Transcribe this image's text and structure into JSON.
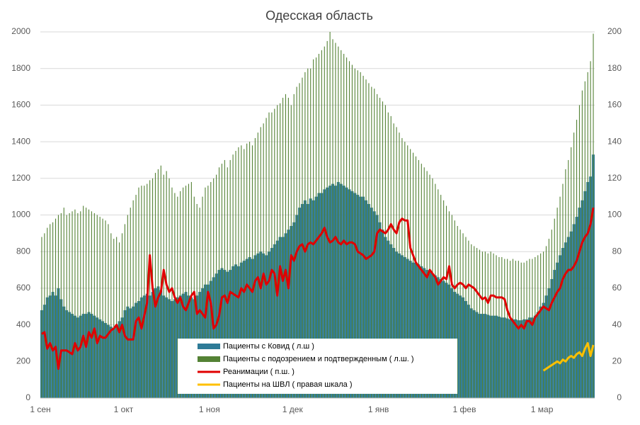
{
  "chart_data": {
    "type": "combo",
    "title": "Одесская область",
    "categories": [
      "1 сен",
      null,
      null,
      null,
      null,
      null,
      null,
      null,
      null,
      null,
      null,
      null,
      null,
      null,
      null,
      null,
      null,
      null,
      null,
      null,
      null,
      null,
      null,
      null,
      null,
      null,
      null,
      null,
      null,
      null,
      "1 окт",
      null,
      null,
      null,
      null,
      null,
      null,
      null,
      null,
      null,
      null,
      null,
      null,
      null,
      null,
      null,
      null,
      null,
      null,
      null,
      null,
      null,
      null,
      null,
      null,
      null,
      null,
      null,
      null,
      null,
      null,
      "1 ноя",
      null,
      null,
      null,
      null,
      null,
      null,
      null,
      null,
      null,
      null,
      null,
      null,
      null,
      null,
      null,
      null,
      null,
      null,
      null,
      null,
      null,
      null,
      null,
      null,
      null,
      null,
      null,
      null,
      null,
      "1 дек",
      null,
      null,
      null,
      null,
      null,
      null,
      null,
      null,
      null,
      null,
      null,
      null,
      null,
      null,
      null,
      null,
      null,
      null,
      null,
      null,
      null,
      null,
      null,
      null,
      null,
      null,
      null,
      null,
      null,
      null,
      "1 янв",
      null,
      null,
      null,
      null,
      null,
      null,
      null,
      null,
      null,
      null,
      null,
      null,
      null,
      null,
      null,
      null,
      null,
      null,
      null,
      null,
      null,
      null,
      null,
      null,
      null,
      null,
      null,
      null,
      null,
      null,
      "1 фев",
      null,
      null,
      null,
      null,
      null,
      null,
      null,
      null,
      null,
      null,
      null,
      null,
      null,
      null,
      null,
      null,
      null,
      null,
      null,
      null,
      null,
      null,
      null,
      null,
      null,
      null,
      null,
      "1 мар",
      null,
      null,
      null,
      null,
      null,
      null,
      null,
      null,
      null,
      null,
      null,
      null,
      null,
      null,
      null,
      null,
      null,
      null
    ],
    "series": [
      {
        "name": "Пациенты с Ковид ( л.ш )",
        "type": "bar",
        "color": "#2e7b97",
        "values": [
          480,
          510,
          550,
          560,
          580,
          560,
          600,
          540,
          500,
          480,
          470,
          460,
          450,
          440,
          450,
          460,
          460,
          470,
          460,
          450,
          440,
          430,
          420,
          410,
          400,
          390,
          380,
          400,
          420,
          440,
          480,
          500,
          490,
          500,
          520,
          530,
          550,
          560,
          570,
          560,
          580,
          600,
          610,
          590,
          560,
          550,
          540,
          530,
          540,
          550,
          560,
          570,
          580,
          560,
          550,
          540,
          560,
          580,
          600,
          620,
          620,
          640,
          660,
          680,
          700,
          710,
          700,
          690,
          700,
          720,
          730,
          720,
          740,
          750,
          760,
          770,
          760,
          780,
          790,
          800,
          790,
          780,
          800,
          820,
          840,
          860,
          880,
          880,
          900,
          920,
          940,
          960,
          1000,
          1040,
          1060,
          1080,
          1060,
          1090,
          1080,
          1100,
          1120,
          1120,
          1140,
          1150,
          1160,
          1170,
          1160,
          1180,
          1170,
          1160,
          1150,
          1140,
          1130,
          1120,
          1110,
          1100,
          1100,
          1080,
          1060,
          1040,
          1020,
          1000,
          960,
          920,
          880,
          860,
          840,
          820,
          800,
          790,
          780,
          770,
          760,
          750,
          740,
          740,
          730,
          720,
          710,
          700,
          690,
          680,
          670,
          660,
          650,
          640,
          630,
          620,
          600,
          580,
          570,
          560,
          550,
          530,
          510,
          490,
          480,
          470,
          460,
          460,
          460,
          455,
          450,
          450,
          450,
          445,
          440,
          440,
          435,
          430,
          430,
          430,
          425,
          425,
          430,
          430,
          440,
          440,
          450,
          470,
          500,
          520,
          560,
          600,
          650,
          700,
          740,
          780,
          820,
          850,
          880,
          910,
          950,
          990,
          1040,
          1080,
          1130,
          1180,
          1210,
          1330
        ]
      },
      {
        "name": "Пациенты с подозрением и подтвержденным ( л.ш. )",
        "type": "bar",
        "color": "#548235",
        "values": [
          880,
          900,
          930,
          950,
          960,
          980,
          1000,
          1010,
          1040,
          1000,
          1010,
          1020,
          1030,
          1010,
          1020,
          1050,
          1040,
          1030,
          1020,
          1010,
          1000,
          990,
          980,
          970,
          950,
          900,
          870,
          880,
          850,
          900,
          950,
          1000,
          1040,
          1080,
          1110,
          1150,
          1160,
          1160,
          1170,
          1190,
          1200,
          1230,
          1250,
          1270,
          1220,
          1240,
          1200,
          1150,
          1120,
          1100,
          1130,
          1150,
          1160,
          1170,
          1180,
          1100,
          1060,
          1040,
          1100,
          1150,
          1160,
          1180,
          1200,
          1220,
          1260,
          1280,
          1300,
          1260,
          1300,
          1330,
          1350,
          1370,
          1380,
          1360,
          1390,
          1400,
          1380,
          1420,
          1450,
          1480,
          1500,
          1530,
          1560,
          1560,
          1580,
          1600,
          1610,
          1640,
          1660,
          1640,
          1600,
          1660,
          1700,
          1720,
          1750,
          1780,
          1800,
          1800,
          1850,
          1860,
          1880,
          1900,
          1920,
          1950,
          2000,
          1960,
          1940,
          1920,
          1900,
          1880,
          1860,
          1840,
          1820,
          1800,
          1790,
          1780,
          1760,
          1740,
          1720,
          1700,
          1690,
          1660,
          1640,
          1620,
          1600,
          1560,
          1540,
          1500,
          1480,
          1450,
          1420,
          1400,
          1380,
          1360,
          1340,
          1320,
          1300,
          1280,
          1260,
          1240,
          1220,
          1200,
          1170,
          1140,
          1110,
          1080,
          1050,
          1020,
          1000,
          970,
          940,
          920,
          900,
          880,
          860,
          840,
          830,
          820,
          810,
          800,
          800,
          790,
          800,
          790,
          780,
          770,
          770,
          760,
          760,
          750,
          760,
          750,
          750,
          740,
          740,
          750,
          760,
          760,
          770,
          780,
          790,
          800,
          830,
          870,
          920,
          980,
          1040,
          1100,
          1170,
          1250,
          1300,
          1370,
          1450,
          1520,
          1600,
          1680,
          1730,
          1780,
          1840,
          1990
        ]
      },
      {
        "name": "Реанимации ( п.ш. )",
        "type": "line",
        "axis": "y2",
        "color": "#e00000",
        "values": [
          35,
          36,
          27,
          30,
          26,
          28,
          16,
          26,
          26,
          26,
          25,
          24,
          30,
          26,
          28,
          34,
          28,
          36,
          33,
          38,
          30,
          34,
          33,
          33,
          35,
          37,
          38,
          40,
          36,
          40,
          34,
          32,
          32,
          32,
          42,
          44,
          38,
          45,
          52,
          78,
          60,
          50,
          55,
          58,
          70,
          62,
          58,
          60,
          55,
          52,
          55,
          50,
          48,
          52,
          56,
          58,
          46,
          48,
          46,
          44,
          58,
          52,
          38,
          40,
          45,
          55,
          56,
          52,
          58,
          57,
          56,
          55,
          60,
          58,
          62,
          60,
          58,
          64,
          66,
          60,
          68,
          62,
          64,
          70,
          68,
          56,
          72,
          64,
          70,
          60,
          78,
          75,
          80,
          83,
          84,
          80,
          84,
          85,
          84,
          86,
          88,
          90,
          93,
          88,
          85,
          86,
          88,
          85,
          84,
          86,
          84,
          85,
          85,
          84,
          80,
          79,
          78,
          76,
          77,
          78,
          80,
          90,
          92,
          91,
          90,
          92,
          95,
          92,
          90,
          96,
          98,
          97,
          97,
          82,
          78,
          74,
          72,
          70,
          68,
          66,
          70,
          68,
          66,
          62,
          64,
          66,
          65,
          72,
          62,
          60,
          62,
          63,
          62,
          60,
          62,
          61,
          60,
          58,
          56,
          54,
          55,
          52,
          56,
          56,
          55,
          55,
          55,
          54,
          48,
          44,
          42,
          40,
          38,
          40,
          38,
          42,
          42,
          40,
          44,
          46,
          48,
          50,
          49,
          48,
          52,
          55,
          58,
          60,
          65,
          68,
          70,
          70,
          72,
          75,
          80,
          85,
          88,
          90,
          95,
          104
        ]
      },
      {
        "name": "Пациенты на ШВЛ ( правая шкала )",
        "type": "line",
        "axis": "y2",
        "color": "#ffc000",
        "values": [
          null,
          null,
          null,
          null,
          null,
          null,
          null,
          null,
          null,
          null,
          null,
          null,
          null,
          null,
          null,
          null,
          null,
          null,
          null,
          null,
          null,
          null,
          null,
          null,
          null,
          null,
          null,
          null,
          null,
          null,
          null,
          null,
          null,
          null,
          null,
          null,
          null,
          null,
          null,
          null,
          null,
          null,
          null,
          null,
          null,
          null,
          null,
          null,
          null,
          null,
          null,
          null,
          null,
          null,
          null,
          null,
          null,
          null,
          null,
          null,
          null,
          null,
          null,
          null,
          null,
          null,
          null,
          null,
          null,
          null,
          null,
          null,
          null,
          null,
          null,
          null,
          null,
          null,
          null,
          null,
          null,
          null,
          null,
          null,
          null,
          null,
          null,
          null,
          null,
          null,
          null,
          null,
          null,
          null,
          null,
          null,
          null,
          null,
          null,
          null,
          null,
          null,
          null,
          null,
          null,
          null,
          null,
          null,
          null,
          null,
          null,
          null,
          null,
          null,
          null,
          null,
          null,
          null,
          null,
          null,
          null,
          null,
          null,
          null,
          null,
          null,
          null,
          null,
          null,
          null,
          null,
          null,
          null,
          null,
          null,
          null,
          null,
          null,
          null,
          null,
          null,
          null,
          null,
          null,
          null,
          null,
          null,
          null,
          null,
          null,
          null,
          null,
          null,
          null,
          null,
          null,
          null,
          null,
          null,
          null,
          null,
          null,
          null,
          null,
          null,
          null,
          null,
          null,
          null,
          null,
          null,
          null,
          null,
          null,
          null,
          null,
          null,
          null,
          null,
          null,
          null,
          15,
          16,
          17,
          18,
          19,
          20,
          19,
          21,
          20,
          22,
          23,
          22,
          24,
          25,
          23,
          27,
          30,
          23,
          29
        ]
      }
    ],
    "ylim": [
      0,
      2000
    ],
    "yticks": [
      0,
      200,
      400,
      600,
      800,
      1000,
      1200,
      1400,
      1600,
      1800,
      2000
    ],
    "y2lim": [
      0,
      200
    ],
    "y2ticks": [
      0,
      20,
      40,
      60,
      80,
      100,
      120,
      140,
      160,
      180,
      200
    ],
    "grid": true,
    "legend": "lower center"
  }
}
